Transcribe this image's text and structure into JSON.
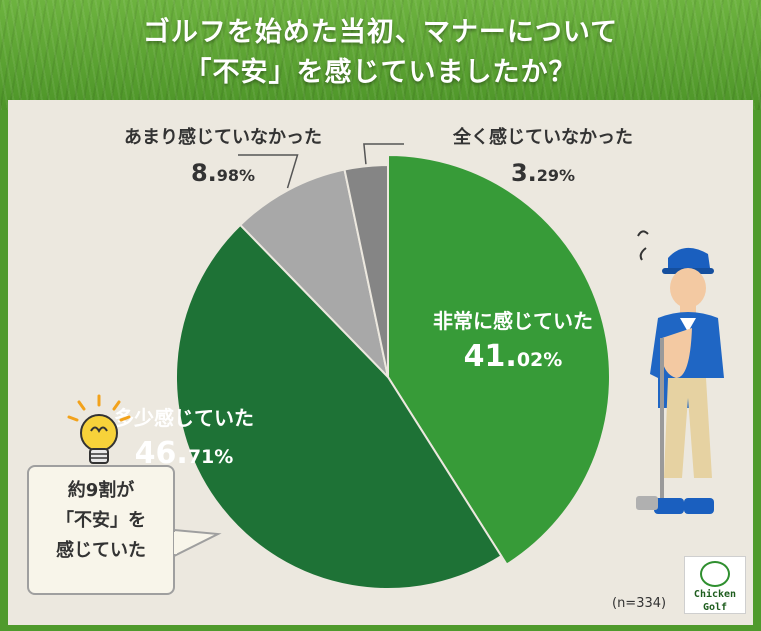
{
  "title": {
    "line1": "ゴルフを始めた当初、マナーについて",
    "line2": "「不安」を感じていましたか？"
  },
  "note": "(n=334)",
  "bubble": [
    "約9割が",
    "「不安」を",
    "感じていた"
  ],
  "logo": {
    "line1": "Chicken",
    "line2": "Golf"
  },
  "colors": {
    "dark_green": "#1e7236",
    "green": "#379b38",
    "grey_mid": "#a8a8a8",
    "grey_dark": "#858585",
    "background": "#ece8df",
    "grass": "#5ea535"
  },
  "icons": [
    "lightbulb-icon",
    "person-thinking-icon"
  ],
  "chart_data": {
    "type": "pie",
    "title": "ゴルフを始めた当初、マナーについて「不安」を感じていましたか？",
    "slices": [
      {
        "label": "非常に感じていた",
        "value": 41.02,
        "int": "41.",
        "dec": "02%",
        "color": "#379b38"
      },
      {
        "label": "多少感じていた",
        "value": 46.71,
        "int": "46.",
        "dec": "71%",
        "color": "#1e7236"
      },
      {
        "label": "あまり感じていなかった",
        "value": 8.98,
        "int": "8.",
        "dec": "98%",
        "color": "#a8a8a8"
      },
      {
        "label": "全く感じていなかった",
        "value": 3.29,
        "int": "3.",
        "dec": "29%",
        "color": "#858585"
      }
    ],
    "start": "12 o'clock, clockwise",
    "legend": "none (direct labels)"
  }
}
